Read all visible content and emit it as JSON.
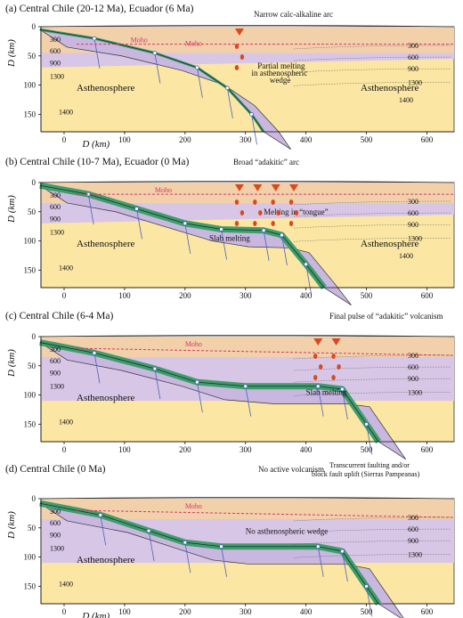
{
  "colors": {
    "lithosphere": "#f2d0aa",
    "mantle_wedge": "#d8c6e6",
    "asthenosphere": "#fbe7a3",
    "slab": "#3e9e6a",
    "moho": "#d23a6e",
    "arc": "#d84a1e",
    "grid": "#4a63b8"
  },
  "panels": [
    {
      "title": "(a) Central Chile (20-12 Ma), Ecuador (6 Ma)",
      "note": "Narrow calc-alkaline arc",
      "labels": [
        "Partial melting",
        "in asthenospheric",
        "wedge"
      ],
      "astheno_left": "Asthenosphere",
      "astheno_right": "Asthenosphere",
      "moho": "Moho",
      "moho2": "Moho",
      "iso_right": [
        "300",
        "600",
        "900",
        "1300",
        "1400"
      ],
      "iso_left": [
        "300",
        "600",
        "900",
        "1300",
        "1400"
      ],
      "xlabel": "D (km)"
    },
    {
      "title": "(b) Central Chile (10-7 Ma), Ecuador (0 Ma)",
      "note": "Broad “adakitic” arc",
      "labels": [
        "Melting in “tongue”",
        "Slab melting"
      ],
      "astheno_left": "Asthenosphere",
      "astheno_right": "Asthenosphere",
      "moho": "Moho",
      "iso_right": [
        "300",
        "600",
        "900",
        "1300",
        "1400"
      ],
      "iso_left": [
        "300",
        "600",
        "900",
        "1300",
        "1400"
      ]
    },
    {
      "title": "(c) Central Chile (6-4 Ma)",
      "note": "Final pulse of “adakitic” volcanism",
      "labels": [
        "Slab melting"
      ],
      "astheno_left": "Asthenosphere",
      "moho": "Moho",
      "iso_right": [
        "300",
        "600",
        "900",
        "1300"
      ],
      "iso_left": [
        "300",
        "600",
        "900",
        "1300",
        "1400"
      ]
    },
    {
      "title": "(d) Central Chile (0 Ma)",
      "note": "No active volcanism",
      "note2": [
        "Transcurrent faulting and/or",
        "block fault uplift (Sierras Pampeanas)"
      ],
      "labels": [
        "No asthenospheric wedge"
      ],
      "astheno_left": "Asthenosphere",
      "moho": "Moho",
      "iso_right": [
        "300",
        "600",
        "900",
        "1300"
      ],
      "iso_left": [
        "300",
        "600",
        "900",
        "1300",
        "1400"
      ],
      "xlabel": "D (km)"
    }
  ],
  "axes": {
    "y_label": "D (km)",
    "x_ticks": [
      "0",
      "100",
      "200",
      "300",
      "400",
      "500",
      "600"
    ],
    "y_ticks": [
      "0",
      "50",
      "100",
      "150"
    ]
  }
}
